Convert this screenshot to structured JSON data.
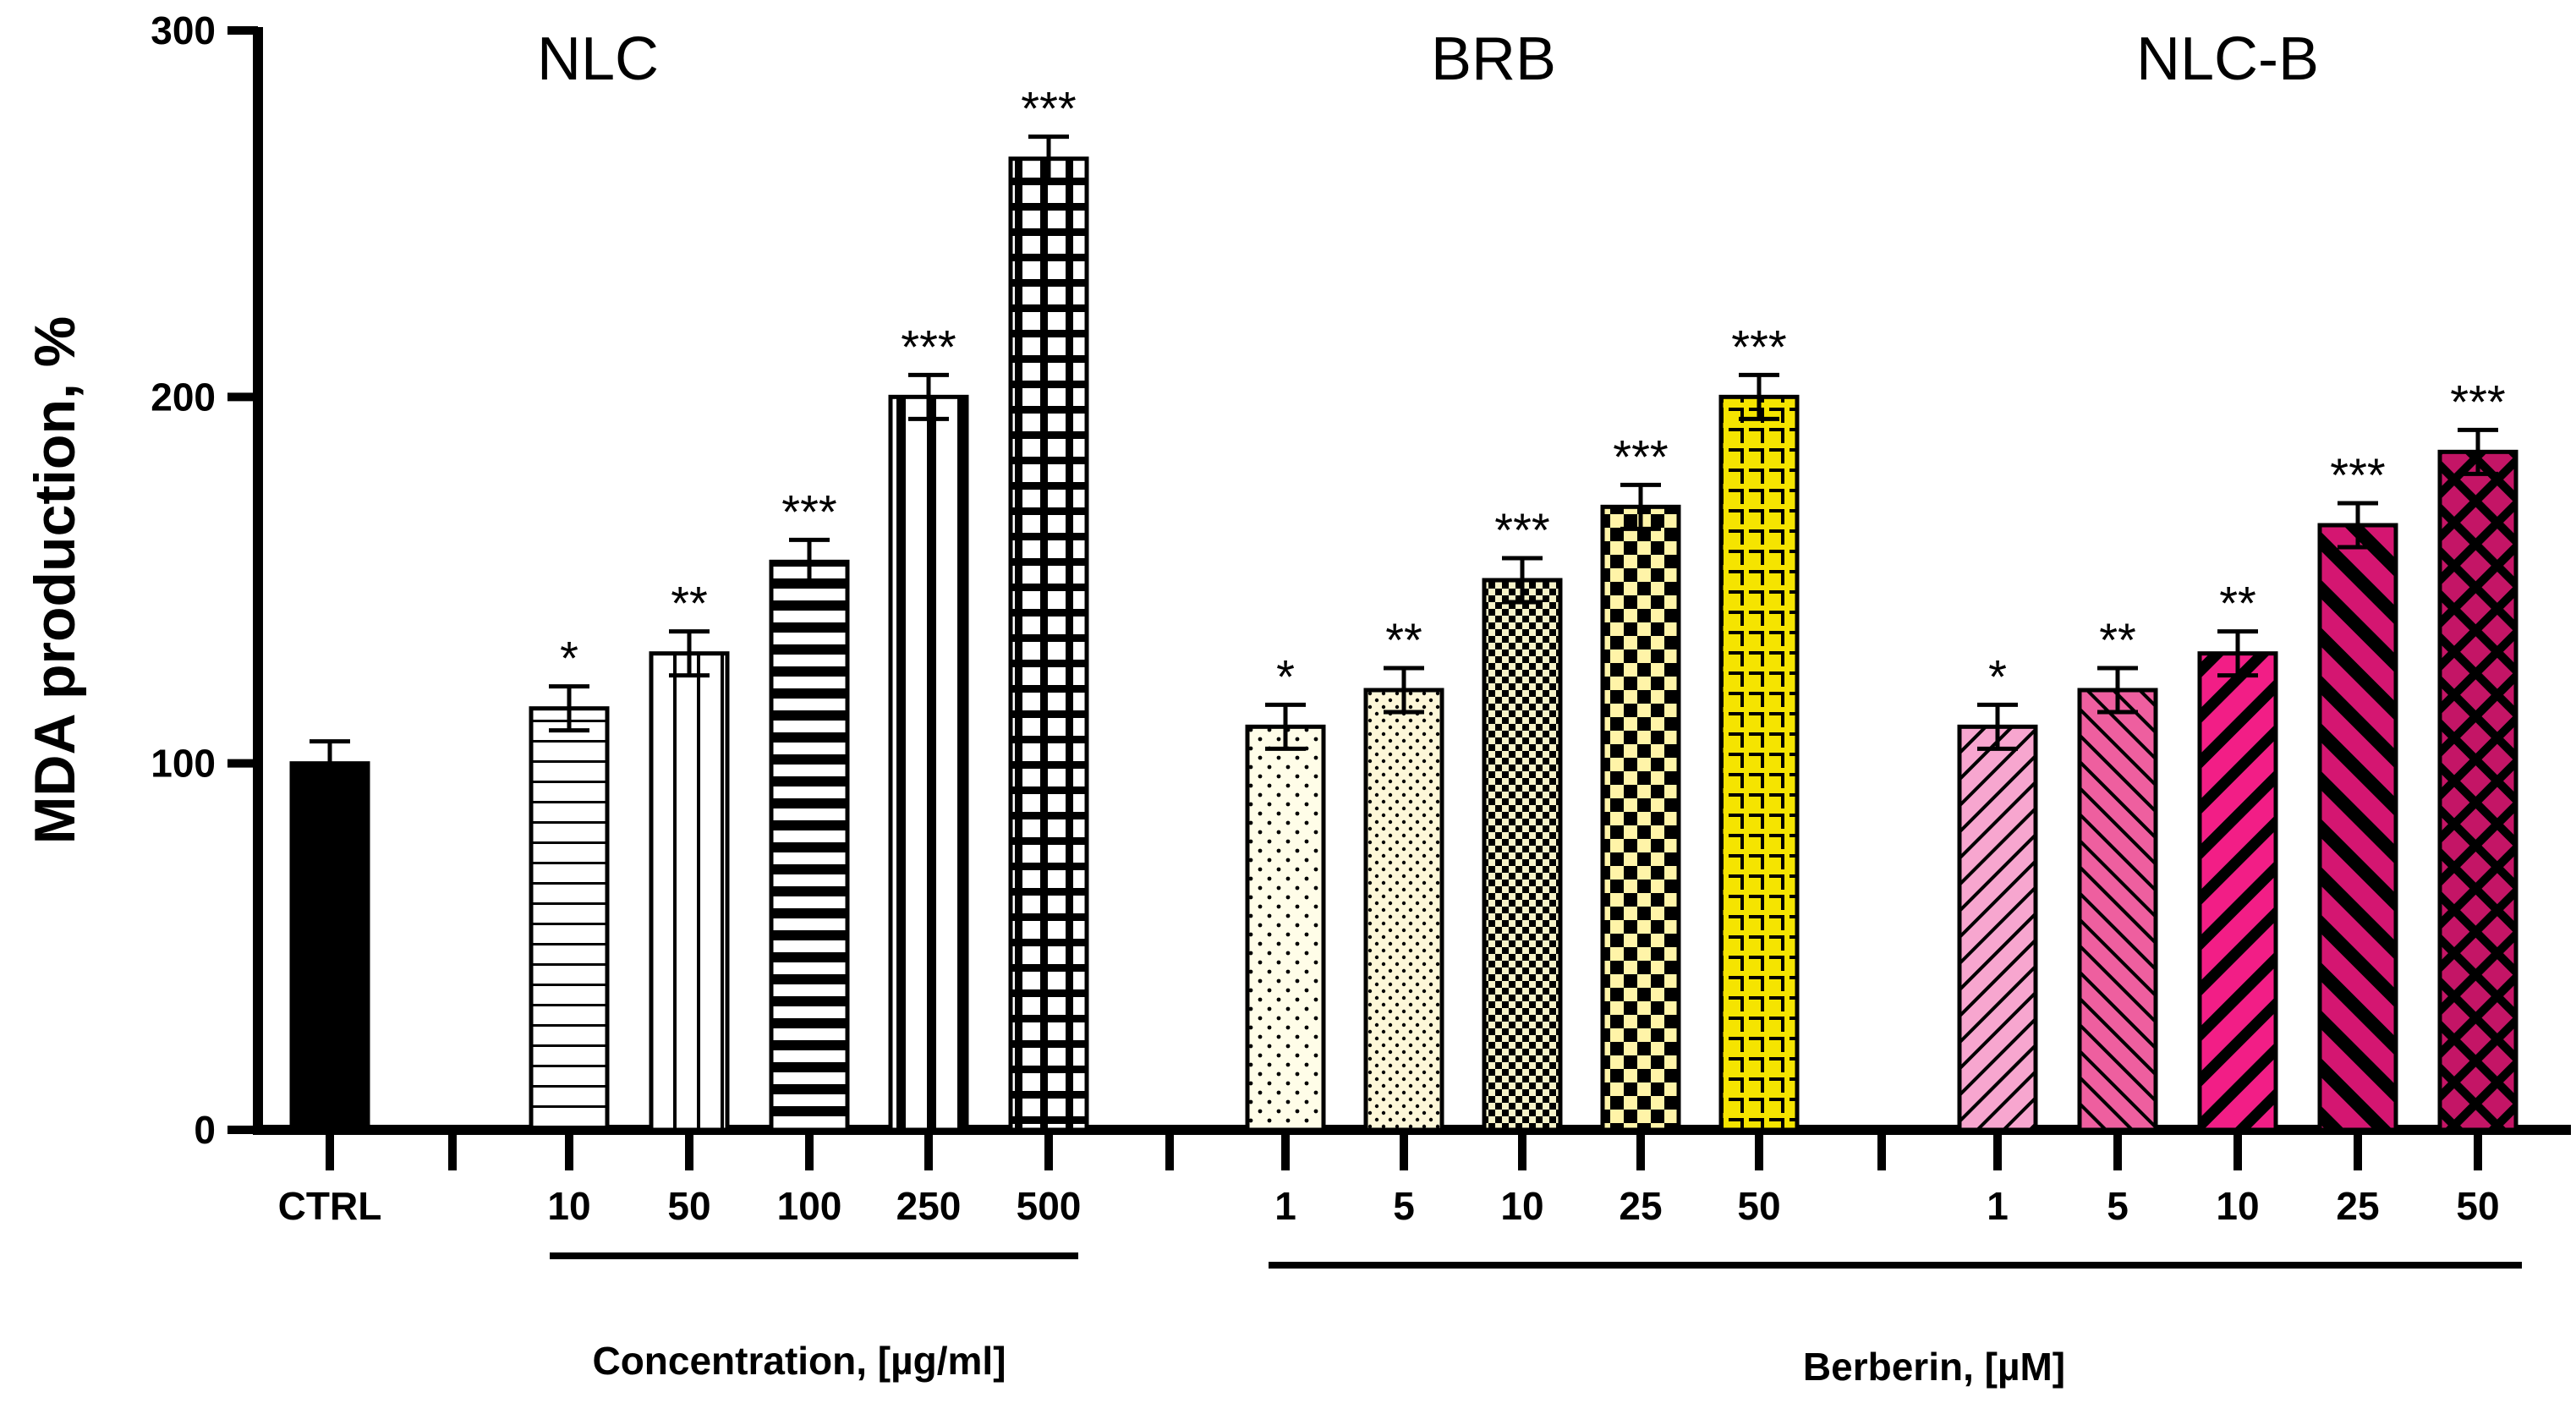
{
  "chart_data": {
    "type": "bar",
    "ylabel": "MDA production, %",
    "ylim": [
      0,
      300
    ],
    "yticks": [
      "0",
      "100",
      "200",
      "300"
    ],
    "groups": [
      {
        "title": "",
        "caption": "",
        "bars": [
          {
            "category": "CTRL",
            "value": 100,
            "error": 6,
            "sig": "",
            "fill": "#000000"
          }
        ]
      },
      {
        "title": "NLC",
        "caption": "Concentration, [µg/ml]",
        "bars": [
          {
            "category": "10",
            "value": 115,
            "error": 6,
            "sig": "*",
            "fill": "#ffffff"
          },
          {
            "category": "50",
            "value": 130,
            "error": 6,
            "sig": "**",
            "fill": "#ffffff"
          },
          {
            "category": "100",
            "value": 155,
            "error": 6,
            "sig": "***",
            "fill": "#ffffff"
          },
          {
            "category": "250",
            "value": 200,
            "error": 6,
            "sig": "***",
            "fill": "#ffffff"
          },
          {
            "category": "500",
            "value": 265,
            "error": 6,
            "sig": "***",
            "fill": "#ffffff"
          }
        ]
      },
      {
        "title": "BRB",
        "caption": "",
        "bars": [
          {
            "category": "1",
            "value": 110,
            "error": 6,
            "sig": "*",
            "fill": "#fffde8"
          },
          {
            "category": "5",
            "value": 120,
            "error": 6,
            "sig": "**",
            "fill": "#fdf7d8"
          },
          {
            "category": "10",
            "value": 150,
            "error": 6,
            "sig": "***",
            "fill": "#f6f2c8"
          },
          {
            "category": "25",
            "value": 170,
            "error": 6,
            "sig": "***",
            "fill": "#fff4a8"
          },
          {
            "category": "50",
            "value": 200,
            "error": 6,
            "sig": "***",
            "fill": "#f5e400"
          }
        ]
      },
      {
        "title": "NLC-B",
        "caption": "Berberin, [µM]",
        "bars": [
          {
            "category": "1",
            "value": 110,
            "error": 6,
            "sig": "*",
            "fill": "#f7a6cf"
          },
          {
            "category": "5",
            "value": 120,
            "error": 6,
            "sig": "**",
            "fill": "#ee5f9f"
          },
          {
            "category": "10",
            "value": 130,
            "error": 6,
            "sig": "**",
            "fill": "#f21e86"
          },
          {
            "category": "25",
            "value": 165,
            "error": 6,
            "sig": "***",
            "fill": "#d41671"
          },
          {
            "category": "50",
            "value": 185,
            "error": 6,
            "sig": "***",
            "fill": "#c41566"
          }
        ]
      }
    ]
  }
}
